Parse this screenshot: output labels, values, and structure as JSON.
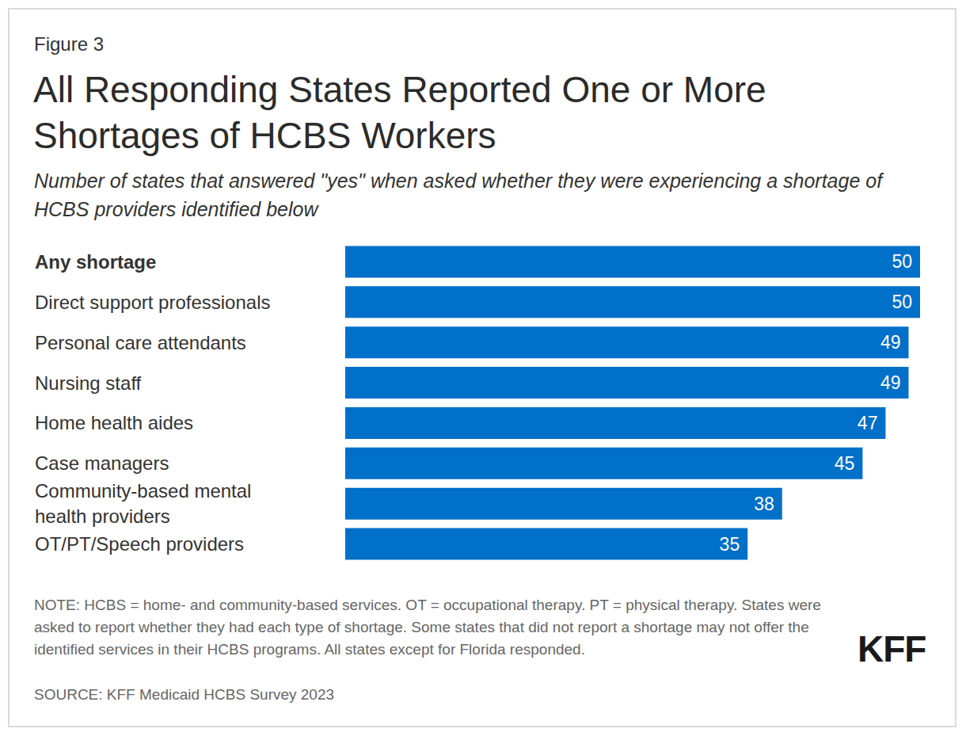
{
  "chart_data": {
    "type": "bar",
    "orientation": "horizontal",
    "figure_label": "Figure 3",
    "title": "All Responding States Reported One or More Shortages of HCBS Workers",
    "subtitle": "Number of states that answered \"yes\" when asked whether they were experiencing a shortage of HCBS providers identified below",
    "categories": [
      "Any shortage",
      "Direct support professionals",
      "Personal care attendants",
      "Nursing staff",
      "Home health aides",
      "Case managers",
      "Community-based mental health providers",
      "OT/PT/Speech providers"
    ],
    "values": [
      50,
      50,
      49,
      49,
      47,
      45,
      38,
      35
    ],
    "color": "#0070c9",
    "xlim": [
      0,
      50
    ],
    "data_labels": true,
    "tick_labels": "y",
    "grid": false,
    "note": "NOTE: HCBS = home- and community-based services. OT = occupational therapy. PT = physical therapy. States were asked to report whether they had each type of shortage. Some states that did not report a shortage may not offer the identified services in their HCBS programs. All states except for Florida responded.",
    "source": "SOURCE: KFF Medicaid HCBS Survey 2023",
    "logo_text": "KFF"
  }
}
